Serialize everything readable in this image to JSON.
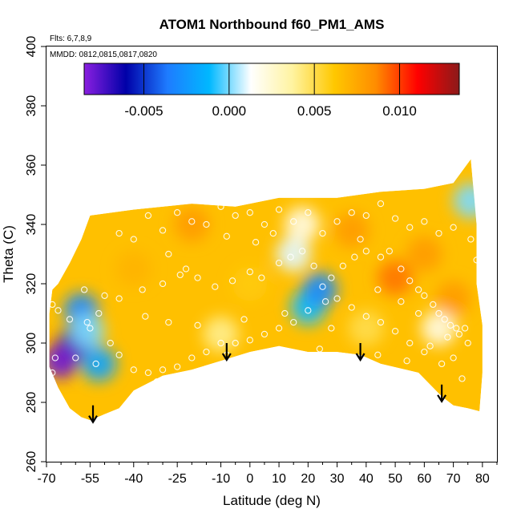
{
  "chart_data": {
    "type": "heatmap",
    "title": "ATOM1 Northbound f60_PM1_AMS",
    "flights_label": "Flts: 6,7,8,9",
    "dates_label": "MMDD: 0812,0815,0817,0820",
    "xlabel": "Latitude (deg N)",
    "ylabel": "Theta (C)",
    "xlim": [
      -70,
      85
    ],
    "ylim": [
      260,
      400
    ],
    "x_ticks": [
      -70,
      -55,
      -40,
      -25,
      -10,
      0,
      10,
      20,
      30,
      40,
      50,
      60,
      70,
      80
    ],
    "y_ticks": [
      260,
      280,
      300,
      320,
      340,
      360,
      380,
      400
    ],
    "colorbar": {
      "range": [
        -0.0085,
        0.0135
      ],
      "ticks": [
        -0.005,
        0.0,
        0.005,
        0.01
      ],
      "tick_labels": [
        "-0.005",
        "0.000",
        "0.005",
        "0.010"
      ],
      "colors": [
        "#8a1fe0",
        "#0000a8",
        "#1e7cff",
        "#00b8ff",
        "#ffffff",
        "#fff3a0",
        "#ffc800",
        "#ff8c00",
        "#ff0000",
        "#8b1a1a"
      ]
    },
    "field_outline": [
      [
        -69,
        310
      ],
      [
        -68,
        318
      ],
      [
        -66,
        320
      ],
      [
        -62,
        327
      ],
      [
        -58,
        335
      ],
      [
        -55,
        343
      ],
      [
        -40,
        345
      ],
      [
        -20,
        347
      ],
      [
        -5,
        346
      ],
      [
        10,
        349
      ],
      [
        30,
        349
      ],
      [
        45,
        351
      ],
      [
        60,
        352
      ],
      [
        70,
        354
      ],
      [
        76,
        362
      ],
      [
        78,
        340
      ],
      [
        78,
        320
      ],
      [
        80,
        306
      ],
      [
        80,
        290
      ],
      [
        79,
        277
      ],
      [
        75,
        278
      ],
      [
        70,
        279
      ],
      [
        66,
        282
      ],
      [
        58,
        290
      ],
      [
        45,
        293
      ],
      [
        38,
        296
      ],
      [
        30,
        297
      ],
      [
        20,
        297
      ],
      [
        10,
        299
      ],
      [
        0,
        297
      ],
      [
        -10,
        294
      ],
      [
        -20,
        291
      ],
      [
        -30,
        289
      ],
      [
        -40,
        284
      ],
      [
        -45,
        278
      ],
      [
        -50,
        276
      ],
      [
        -55,
        274
      ],
      [
        -58,
        275
      ],
      [
        -62,
        278
      ],
      [
        -66,
        285
      ],
      [
        -69,
        292
      ]
    ],
    "anomalies": [
      {
        "lat": -60,
        "theta": 300,
        "value": -0.007
      },
      {
        "lat": -65,
        "theta": 294,
        "value": -0.008
      },
      {
        "lat": -58,
        "theta": 311,
        "value": -0.003
      },
      {
        "lat": -52,
        "theta": 293,
        "value": -0.002
      },
      {
        "lat": -56,
        "theta": 304,
        "value": 0.0
      },
      {
        "lat": 20,
        "theta": 312,
        "value": -0.001
      },
      {
        "lat": 24,
        "theta": 318,
        "value": -0.003
      },
      {
        "lat": 15,
        "theta": 330,
        "value": 0.001
      },
      {
        "lat": 18,
        "theta": 340,
        "value": 0.002
      },
      {
        "lat": 65,
        "theta": 305,
        "value": 0.002
      },
      {
        "lat": 76,
        "theta": 348,
        "value": 0.0
      },
      {
        "lat": -20,
        "theta": 340,
        "value": 0.008
      },
      {
        "lat": 35,
        "theta": 338,
        "value": 0.008
      },
      {
        "lat": 50,
        "theta": 322,
        "value": 0.009
      },
      {
        "lat": -40,
        "theta": 325,
        "value": 0.007
      },
      {
        "lat": 60,
        "theta": 330,
        "value": 0.008
      },
      {
        "lat": 0,
        "theta": 320,
        "value": 0.006
      },
      {
        "lat": 70,
        "theta": 315,
        "value": 0.008
      },
      {
        "lat": -10,
        "theta": 303,
        "value": 0.004
      },
      {
        "lat": 40,
        "theta": 305,
        "value": 0.005
      }
    ],
    "sample_points": [
      [
        -68,
        313
      ],
      [
        -66,
        311
      ],
      [
        -62,
        308
      ],
      [
        -56,
        307
      ],
      [
        -53,
        293
      ],
      [
        -60,
        295
      ],
      [
        -67,
        295
      ],
      [
        -68,
        290
      ],
      [
        -57,
        318
      ],
      [
        -50,
        316
      ],
      [
        -45,
        315
      ],
      [
        -37,
        318
      ],
      [
        -30,
        320
      ],
      [
        -24,
        323
      ],
      [
        -18,
        322
      ],
      [
        -12,
        319
      ],
      [
        -6,
        321
      ],
      [
        0,
        324
      ],
      [
        4,
        322
      ],
      [
        10,
        327
      ],
      [
        14,
        329
      ],
      [
        18,
        331
      ],
      [
        22,
        326
      ],
      [
        25,
        319
      ],
      [
        26,
        314
      ],
      [
        28,
        322
      ],
      [
        32,
        326
      ],
      [
        36,
        329
      ],
      [
        40,
        331
      ],
      [
        45,
        329
      ],
      [
        48,
        331
      ],
      [
        52,
        325
      ],
      [
        55,
        321
      ],
      [
        58,
        318
      ],
      [
        60,
        316
      ],
      [
        63,
        313
      ],
      [
        65,
        310
      ],
      [
        67,
        308
      ],
      [
        69,
        306
      ],
      [
        71,
        305
      ],
      [
        72,
        303
      ],
      [
        74,
        305
      ],
      [
        75,
        300
      ],
      [
        70,
        295
      ],
      [
        73,
        288
      ],
      [
        66,
        293
      ],
      [
        60,
        297
      ],
      [
        55,
        300
      ],
      [
        50,
        304
      ],
      [
        45,
        307
      ],
      [
        40,
        309
      ],
      [
        35,
        312
      ],
      [
        30,
        315
      ],
      [
        20,
        311
      ],
      [
        15,
        307
      ],
      [
        10,
        305
      ],
      [
        5,
        303
      ],
      [
        0,
        301
      ],
      [
        -5,
        300
      ],
      [
        -10,
        300
      ],
      [
        -15,
        297
      ],
      [
        -20,
        295
      ],
      [
        -25,
        292
      ],
      [
        -30,
        291
      ],
      [
        -35,
        290
      ],
      [
        -40,
        291
      ],
      [
        -45,
        296
      ],
      [
        -48,
        300
      ],
      [
        -52,
        310
      ],
      [
        -55,
        305
      ],
      [
        -45,
        337
      ],
      [
        -40,
        335
      ],
      [
        -35,
        343
      ],
      [
        -30,
        338
      ],
      [
        -25,
        344
      ],
      [
        -20,
        341
      ],
      [
        -15,
        340
      ],
      [
        -10,
        346
      ],
      [
        -5,
        343
      ],
      [
        0,
        344
      ],
      [
        5,
        340
      ],
      [
        10,
        345
      ],
      [
        15,
        341
      ],
      [
        20,
        344
      ],
      [
        25,
        337
      ],
      [
        30,
        341
      ],
      [
        35,
        344
      ],
      [
        40,
        343
      ],
      [
        45,
        347
      ],
      [
        50,
        342
      ],
      [
        55,
        339
      ],
      [
        60,
        341
      ],
      [
        65,
        337
      ],
      [
        70,
        339
      ],
      [
        76,
        335
      ],
      [
        78,
        328
      ],
      [
        -8,
        336
      ],
      [
        2,
        334
      ],
      [
        8,
        337
      ],
      [
        38,
        335
      ],
      [
        -28,
        330
      ],
      [
        -22,
        325
      ],
      [
        44,
        318
      ],
      [
        52,
        314
      ],
      [
        58,
        310
      ],
      [
        -36,
        309
      ],
      [
        -28,
        307
      ],
      [
        -18,
        306
      ],
      [
        -2,
        308
      ],
      [
        12,
        310
      ],
      [
        28,
        305
      ],
      [
        44,
        296
      ],
      [
        54,
        294
      ],
      [
        62,
        299
      ],
      [
        68,
        302
      ],
      [
        24,
        298
      ],
      [
        6,
        297
      ],
      [
        -8,
        296
      ],
      [
        -32,
        287
      ]
    ],
    "arrows": [
      {
        "lat": -54,
        "theta": 279
      },
      {
        "lat": -8,
        "theta": 300
      },
      {
        "lat": 38,
        "theta": 300
      },
      {
        "lat": 66,
        "theta": 286
      }
    ]
  }
}
